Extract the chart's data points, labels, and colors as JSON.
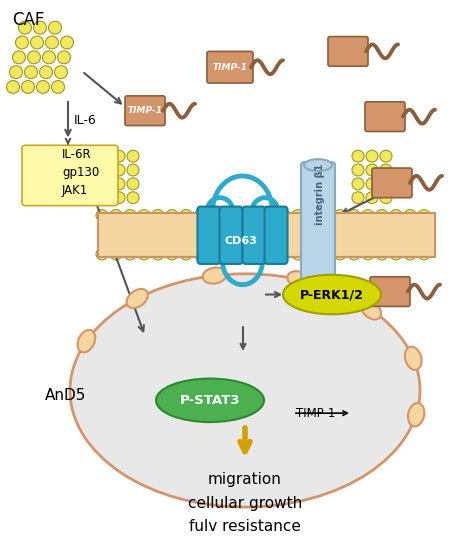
{
  "bg_color": "#ffffff",
  "caf_label": "CAF",
  "il6_label": "IL-6",
  "il6r_label": "IL-6R\ngp130\nJAK1",
  "cd63_label": "CD63",
  "integrin_label": "integrin β1",
  "timp1_label": "TIMP-1",
  "perk_label": "P-ERK1/2",
  "pstat3_label": "P-STAT3",
  "and5_label": "AnD5",
  "output_label": "migration\ncellular growth\nfulv resistance",
  "membrane_color": "#f5d5a0",
  "membrane_line_color": "#c8956a",
  "cd63_color": "#2eaacc",
  "integrin_color": "#b8d4e8",
  "timp1_color": "#d4956a",
  "pstat3_fill": "#4caf50",
  "perk_fill": "#d4d800",
  "il6r_fill": "#fffaaa",
  "cell_fill": "#e8e8e8",
  "cell_stroke": "#d4956a",
  "arrow_color": "#666666",
  "bead_color": "#f0e860",
  "bead_stroke": "#a09820",
  "output_arrow_color": "#d4a000"
}
